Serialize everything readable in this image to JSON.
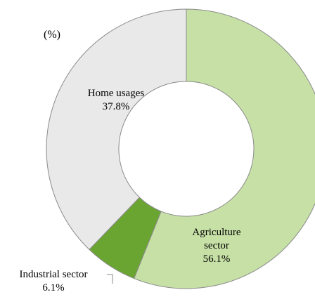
{
  "chart_data": {
    "type": "donut",
    "title": "(%)",
    "categories": [
      "Agriculture sector",
      "Industrial sector",
      "Home usages"
    ],
    "values": [
      56.1,
      6.1,
      37.8
    ],
    "value_labels": [
      "56.1%",
      "6.1%",
      "37.8%"
    ],
    "colors": [
      "#c6e0a6",
      "#6aa532",
      "#e9e9e9"
    ]
  }
}
